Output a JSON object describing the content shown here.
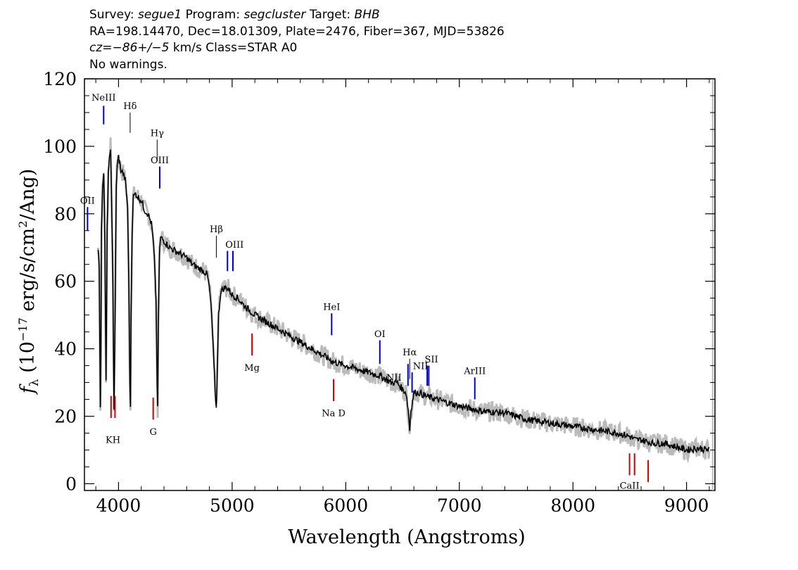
{
  "header": {
    "survey_label": "Survey:",
    "survey": "segue1",
    "program_label": "Program:",
    "program": "segcluster",
    "target_label": "Target:",
    "target": "BHB",
    "line2": "RA=198.14470, Dec=18.01309, Plate=2476, Fiber=367, MJD=53826",
    "cz_label": "cz=",
    "cz_value": "−86+/−5",
    "cz_units": " km/s Class=STAR A0",
    "line4": "No warnings."
  },
  "chart_data": {
    "type": "line",
    "xlabel": "Wavelength (Angstroms)",
    "ylabel_parts": {
      "f": "f",
      "sub": "λ",
      "pre": " (10",
      "exp1": "−17",
      "mid": " erg/s/cm",
      "exp2": "2",
      "post": "/Ang)"
    },
    "xlim": [
      3700,
      9250
    ],
    "ylim": [
      -2,
      120
    ],
    "xticks": [
      4000,
      5000,
      6000,
      7000,
      8000,
      9000
    ],
    "yticks": [
      0,
      20,
      40,
      60,
      80,
      100,
      120
    ],
    "colors": {
      "flux": "#000000",
      "error": "#bbbbbb",
      "emission": "#0000cc",
      "absorption": "#cc0000",
      "hydrogen": "#000000"
    },
    "series": [
      {
        "x": [
          3820,
          3830,
          3840,
          3845,
          3850,
          3860,
          3870,
          3880,
          3890,
          3900,
          3910,
          3920,
          3930,
          3940,
          3950,
          3960,
          3970,
          3975,
          3980,
          3990,
          4000,
          4010,
          4020,
          4040,
          4060,
          4080,
          4090,
          4100,
          4105,
          4110,
          4120,
          4130,
          4150,
          4170,
          4200,
          4230,
          4260,
          4290,
          4310,
          4330,
          4340,
          4345,
          4350,
          4360,
          4370,
          4400,
          4450,
          4500,
          4550,
          4600,
          4650,
          4700,
          4750,
          4780,
          4800,
          4820,
          4840,
          4855,
          4861,
          4867,
          4880,
          4900,
          4930,
          4960,
          5000,
          5050,
          5100,
          5200,
          5300,
          5400,
          5500,
          5600,
          5700,
          5800,
          5900,
          6000,
          6100,
          6200,
          6300,
          6400,
          6450,
          6500,
          6530,
          6550,
          6563,
          6575,
          6600,
          6650,
          6700,
          6800,
          6900,
          7000,
          7200,
          7400,
          7600,
          7800,
          8000,
          8200,
          8400,
          8500,
          8550,
          8600,
          8700,
          8800,
          8900,
          9000,
          9100,
          9200
        ],
        "y": [
          70,
          65,
          22,
          40,
          75,
          88,
          93,
          70,
          30,
          75,
          92,
          96,
          100,
          82,
          60,
          22,
          50,
          70,
          88,
          95,
          97,
          95,
          93,
          92,
          90,
          82,
          60,
          30,
          22,
          50,
          75,
          85,
          86,
          85,
          84,
          81,
          80,
          77,
          70,
          55,
          30,
          22,
          45,
          68,
          73,
          72,
          70,
          69,
          68,
          67,
          65,
          64,
          63,
          62,
          58,
          50,
          35,
          24,
          23,
          30,
          50,
          57,
          58,
          58,
          56,
          55,
          53,
          50,
          48,
          46,
          44,
          42,
          40,
          38,
          36,
          35,
          34,
          33,
          32,
          30,
          30,
          28,
          27,
          22,
          16,
          22,
          27,
          27,
          26,
          25,
          24,
          23,
          21.5,
          21,
          19,
          18,
          17,
          16,
          15,
          14,
          13,
          13,
          12,
          12,
          11,
          10,
          10.5,
          10
        ]
      }
    ],
    "lines": [
      {
        "label": "NeIII",
        "x": 3869,
        "kind": "emission",
        "top": 112,
        "bottom": 106.5,
        "label_y": 113.5
      },
      {
        "label": "Hδ",
        "x": 4102,
        "kind": "hydrogen",
        "top": 110,
        "bottom": 104,
        "label_y": 111
      },
      {
        "label": "Hγ",
        "x": 4340,
        "kind": "hydrogen",
        "top": 102,
        "bottom": 96,
        "label_y": 103
      },
      {
        "label": "OIII",
        "x": 4363,
        "kind": "emission",
        "top": 94,
        "bottom": 87.5,
        "label_y": 95
      },
      {
        "label": "OII",
        "x": 3727,
        "kind": "emission",
        "top": 82,
        "bottom": 75,
        "label_y": 83
      },
      {
        "label": "Hβ",
        "x": 4861,
        "kind": "hydrogen",
        "top": 73.5,
        "bottom": 67,
        "label_y": 74.5
      },
      {
        "label": "OIII",
        "x": 4959,
        "kind": "emission",
        "top": 69,
        "bottom": 63,
        "label_y": 70
      },
      {
        "label": "",
        "x": 5007,
        "kind": "emission",
        "top": 69,
        "bottom": 63,
        "label_y": 70
      },
      {
        "label": "HeI",
        "x": 5876,
        "kind": "emission",
        "top": 50.5,
        "bottom": 44,
        "label_y": 51.5
      },
      {
        "label": "OI",
        "x": 6300,
        "kind": "emission",
        "top": 42.5,
        "bottom": 35.5,
        "label_y": 43.5
      },
      {
        "label": "Hα",
        "x": 6563,
        "kind": "hydrogen",
        "top": 37,
        "bottom": 31,
        "label_y": 38
      },
      {
        "label": "NII",
        "x": 6548,
        "kind": "emission",
        "top": 35.5,
        "bottom": 29,
        "label_y": 30.5
      },
      {
        "label": "NII",
        "x": 6584,
        "kind": "emission",
        "top": 33,
        "bottom": 27,
        "label_y": 34
      },
      {
        "label": "SII",
        "x": 6717,
        "kind": "emission",
        "top": 35,
        "bottom": 29,
        "label_y": 36
      },
      {
        "label": "",
        "x": 6731,
        "kind": "emission",
        "top": 35,
        "bottom": 29,
        "label_y": 36
      },
      {
        "label": "ArIII",
        "x": 7136,
        "kind": "emission",
        "top": 31.5,
        "bottom": 25,
        "label_y": 32.5
      },
      {
        "label": "Mg",
        "x": 5175,
        "kind": "absorption",
        "top": 44.5,
        "bottom": 38,
        "label_y": 33.5
      },
      {
        "label": "Na D",
        "x": 5893,
        "kind": "absorption",
        "top": 31,
        "bottom": 24.5,
        "label_y": 20
      },
      {
        "label": "G",
        "x": 4305,
        "kind": "absorption",
        "top": 25.5,
        "bottom": 19,
        "label_y": 14.5
      },
      {
        "label": "",
        "x": 3934,
        "kind": "absorption",
        "top": 26,
        "bottom": 19.5,
        "label_y": 15
      },
      {
        "label": "",
        "x": 3969,
        "kind": "absorption",
        "top": 26,
        "bottom": 19.5,
        "label_y": 15
      },
      {
        "label": "CaII",
        "x": 8498,
        "kind": "absorption",
        "top": 9,
        "bottom": 2.5,
        "label_y": -1.5
      },
      {
        "label": "",
        "x": 8542,
        "kind": "absorption",
        "top": 9,
        "bottom": 2.5,
        "label_y": -1.5
      },
      {
        "label": "",
        "x": 8662,
        "kind": "absorption",
        "top": 7,
        "bottom": 0.5,
        "label_y": -1.5
      }
    ],
    "kh_label": "KH",
    "kh_x": 3951
  }
}
